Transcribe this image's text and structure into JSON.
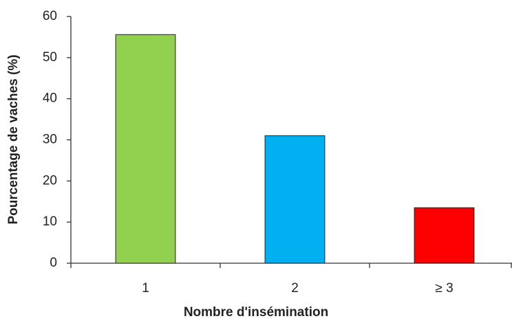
{
  "chart_data": {
    "type": "bar",
    "x_label": "Nombre d'insémination",
    "y_label": "Pourcentage de vaches (%)",
    "categories": [
      "1",
      "2",
      "≥ 3"
    ],
    "values": [
      55.6,
      31,
      13.5
    ],
    "colors": [
      "#92d050",
      "#00b0f0",
      "#ff0000"
    ],
    "ylim": [
      0,
      60
    ],
    "yticks": [
      0,
      10,
      20,
      30,
      40,
      50,
      60
    ],
    "grid": false
  }
}
